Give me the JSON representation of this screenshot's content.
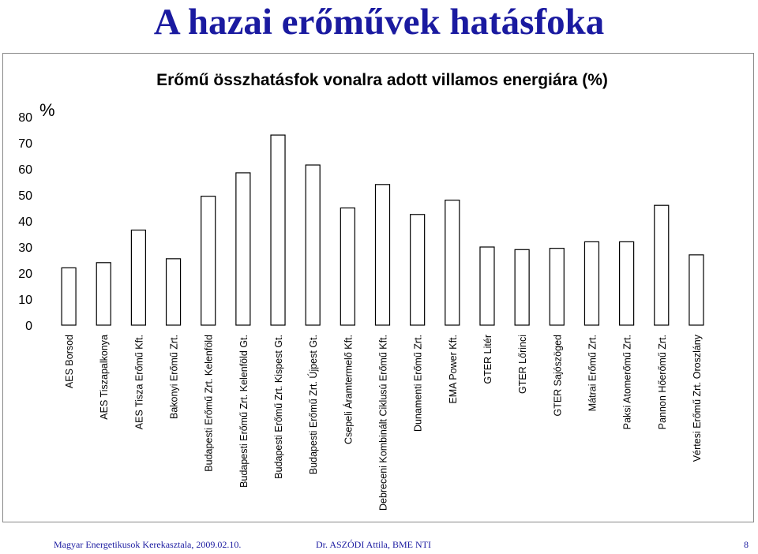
{
  "slide": {
    "title": "A hazai erőművek hatásfoka"
  },
  "footer": {
    "left": "Magyar Energetikusok Kerekasztala, 2009.02.10.",
    "center": "Dr. ASZÓDI Attila, BME NTI",
    "page_number": "8"
  },
  "colors": {
    "title": "#1a1aa0",
    "bar_fill": "#ffffff",
    "bar_stroke": "#000000"
  },
  "chart_data": {
    "type": "bar",
    "title": "Erőmű összhatásfok vonalra adott villamos energiára (%)",
    "ylabel": "%",
    "xlabel": "",
    "ylim": [
      0,
      80
    ],
    "yticks": [
      0,
      10,
      20,
      30,
      40,
      50,
      60,
      70,
      80
    ],
    "grid": false,
    "legend": "none",
    "categories": [
      "AES Borsod",
      "AES Tiszapalkonya",
      "AES Tisza Erőmű Kft.",
      "Bakonyi Erőmű Zrt.",
      "Budapesti Erőmű Zrt. Kelenföld",
      "Budapesti Erőmű Zrt. Kelenföld Gt.",
      "Budapesti Erőmű Zrt. Kispest Gt.",
      "Budapesti Erőmű Zrt. Újpest Gt.",
      "Csepeli Áramtermelő Kft.",
      "Debreceni Kombinált Ciklusú Erőmű Kft.",
      "Dunamenti Erőmű Zrt.",
      "EMA Power Kft.",
      "GTER Litér",
      "GTER Lőrinci",
      "GTER Sajószöged",
      "Mátrai Erőmű Zrt.",
      "Paksi Atomerőmű Zrt.",
      "Pannon Hőerőmű Zrt.",
      "Vértesi Erőmű Zrt. Oroszlány"
    ],
    "values": [
      22,
      24,
      36.5,
      25.5,
      49.5,
      58.5,
      73,
      61.5,
      45,
      54,
      42.5,
      48,
      30,
      29,
      29.5,
      32,
      32,
      46,
      27
    ]
  }
}
